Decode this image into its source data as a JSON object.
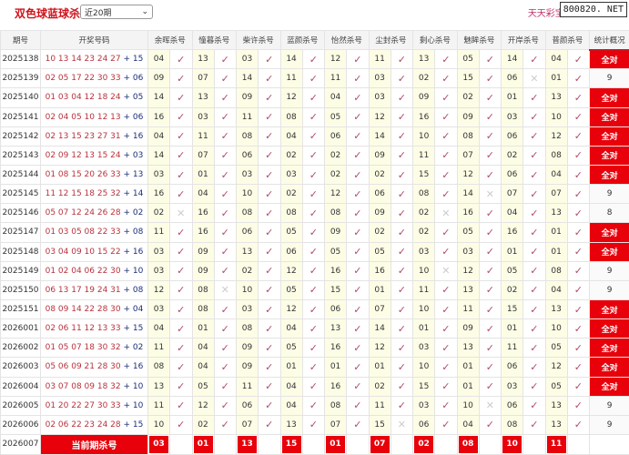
{
  "header": {
    "title": "双色球蓝球杀号",
    "range_select": "近20期",
    "brand": "天天彩宝贝.",
    "site": "800820. NET"
  },
  "columns": [
    "期号",
    "开奖号码",
    "余晖杀号",
    "憧暮杀号",
    "柴许杀号",
    "蓝颜杀号",
    "怡然杀号",
    "尘封杀号",
    "剩心杀号",
    "魅眸杀号",
    "开岸杀号",
    "普颜杀号",
    "统计概况"
  ],
  "marks": {
    "hit": "✓",
    "miss": "✕"
  },
  "colors": {
    "accent": "#e8000b",
    "red_ball": "#b8323c",
    "blue_ball": "#1c2f7a"
  },
  "rows": [
    {
      "period": "2025138",
      "reds": "10 13 14 23 24 27",
      "blue": "+ 15",
      "kills": [
        "04",
        "13",
        "03",
        "14",
        "12",
        "11",
        "13",
        "05",
        "14",
        "04"
      ],
      "miss": [],
      "stat": "全对"
    },
    {
      "period": "2025139",
      "reds": "02 05 17 22 30 33",
      "blue": "+ 06",
      "kills": [
        "09",
        "07",
        "14",
        "11",
        "11",
        "03",
        "02",
        "15",
        "06",
        "01"
      ],
      "miss": [
        8
      ],
      "stat": "9"
    },
    {
      "period": "2025140",
      "reds": "01 03 04 12 18 24",
      "blue": "+ 05",
      "kills": [
        "14",
        "13",
        "09",
        "12",
        "04",
        "03",
        "09",
        "02",
        "01",
        "13"
      ],
      "miss": [],
      "stat": "全对"
    },
    {
      "period": "2025141",
      "reds": "02 04 05 10 12 13",
      "blue": "+ 06",
      "kills": [
        "16",
        "03",
        "11",
        "08",
        "05",
        "12",
        "16",
        "09",
        "03",
        "10"
      ],
      "miss": [],
      "stat": "全对"
    },
    {
      "period": "2025142",
      "reds": "02 13 15 23 27 31",
      "blue": "+ 16",
      "kills": [
        "04",
        "11",
        "08",
        "04",
        "06",
        "14",
        "10",
        "08",
        "06",
        "12"
      ],
      "miss": [],
      "stat": "全对"
    },
    {
      "period": "2025143",
      "reds": "02 09 12 13 15 24",
      "blue": "+ 03",
      "kills": [
        "14",
        "07",
        "06",
        "02",
        "02",
        "09",
        "11",
        "07",
        "02",
        "08"
      ],
      "miss": [],
      "stat": "全对"
    },
    {
      "period": "2025144",
      "reds": "01 08 15 20 26 33",
      "blue": "+ 13",
      "kills": [
        "03",
        "01",
        "03",
        "03",
        "02",
        "02",
        "15",
        "12",
        "06",
        "04"
      ],
      "miss": [],
      "stat": "全对"
    },
    {
      "period": "2025145",
      "reds": "11 12 15 18 25 32",
      "blue": "+ 14",
      "kills": [
        "16",
        "04",
        "10",
        "02",
        "12",
        "06",
        "08",
        "14",
        "07",
        "07"
      ],
      "miss": [
        7
      ],
      "stat": "9"
    },
    {
      "period": "2025146",
      "reds": "05 07 12 24 26 28",
      "blue": "+ 02",
      "kills": [
        "02",
        "16",
        "08",
        "08",
        "08",
        "09",
        "02",
        "16",
        "04",
        "13"
      ],
      "miss": [
        0,
        6
      ],
      "stat": "8"
    },
    {
      "period": "2025147",
      "reds": "01 03 05 08 22 33",
      "blue": "+ 08",
      "kills": [
        "11",
        "16",
        "06",
        "05",
        "09",
        "02",
        "02",
        "05",
        "16",
        "01"
      ],
      "miss": [],
      "stat": "全对"
    },
    {
      "period": "2025148",
      "reds": "03 04 09 10 15 22",
      "blue": "+ 16",
      "kills": [
        "03",
        "09",
        "13",
        "06",
        "05",
        "05",
        "03",
        "03",
        "01",
        "01"
      ],
      "miss": [],
      "stat": "全对"
    },
    {
      "period": "2025149",
      "reds": "01 02 04 06 22 30",
      "blue": "+ 10",
      "kills": [
        "03",
        "09",
        "02",
        "12",
        "16",
        "16",
        "10",
        "12",
        "05",
        "08"
      ],
      "miss": [
        6
      ],
      "stat": "9"
    },
    {
      "period": "2025150",
      "reds": "06 13 17 19 24 31",
      "blue": "+ 08",
      "kills": [
        "12",
        "08",
        "10",
        "05",
        "15",
        "01",
        "11",
        "13",
        "02",
        "04"
      ],
      "miss": [
        1
      ],
      "stat": "9"
    },
    {
      "period": "2025151",
      "reds": "08 09 14 22 28 30",
      "blue": "+ 04",
      "kills": [
        "03",
        "08",
        "03",
        "12",
        "06",
        "07",
        "10",
        "11",
        "15",
        "13"
      ],
      "miss": [],
      "stat": "全对"
    },
    {
      "period": "2026001",
      "reds": "02 06 11 12 13 33",
      "blue": "+ 15",
      "kills": [
        "04",
        "01",
        "08",
        "04",
        "13",
        "14",
        "01",
        "09",
        "01",
        "10"
      ],
      "miss": [],
      "stat": "全对"
    },
    {
      "period": "2026002",
      "reds": "01 05 07 18 30 32",
      "blue": "+ 02",
      "kills": [
        "11",
        "04",
        "09",
        "05",
        "16",
        "12",
        "03",
        "13",
        "11",
        "05"
      ],
      "miss": [],
      "stat": "全对"
    },
    {
      "period": "2026003",
      "reds": "05 06 09 21 28 30",
      "blue": "+ 16",
      "kills": [
        "08",
        "04",
        "09",
        "01",
        "01",
        "01",
        "10",
        "01",
        "06",
        "12"
      ],
      "miss": [],
      "stat": "全对"
    },
    {
      "period": "2026004",
      "reds": "03 07 08 09 18 32",
      "blue": "+ 10",
      "kills": [
        "13",
        "05",
        "11",
        "04",
        "16",
        "02",
        "15",
        "01",
        "03",
        "05"
      ],
      "miss": [],
      "stat": "全对"
    },
    {
      "period": "2026005",
      "reds": "01 20 22 27 30 33",
      "blue": "+ 10",
      "kills": [
        "11",
        "12",
        "06",
        "04",
        "08",
        "11",
        "03",
        "10",
        "06",
        "13"
      ],
      "miss": [
        7
      ],
      "stat": "9"
    },
    {
      "period": "2026006",
      "reds": "02 06 22 23 24 28",
      "blue": "+ 15",
      "kills": [
        "10",
        "02",
        "07",
        "13",
        "07",
        "15",
        "06",
        "04",
        "08",
        "13"
      ],
      "miss": [
        5
      ],
      "stat": "9"
    }
  ],
  "current": {
    "period": "2026007",
    "label": "当前期杀号",
    "kills": [
      "03",
      "01",
      "13",
      "15",
      "01",
      "07",
      "02",
      "08",
      "10",
      "11"
    ]
  }
}
